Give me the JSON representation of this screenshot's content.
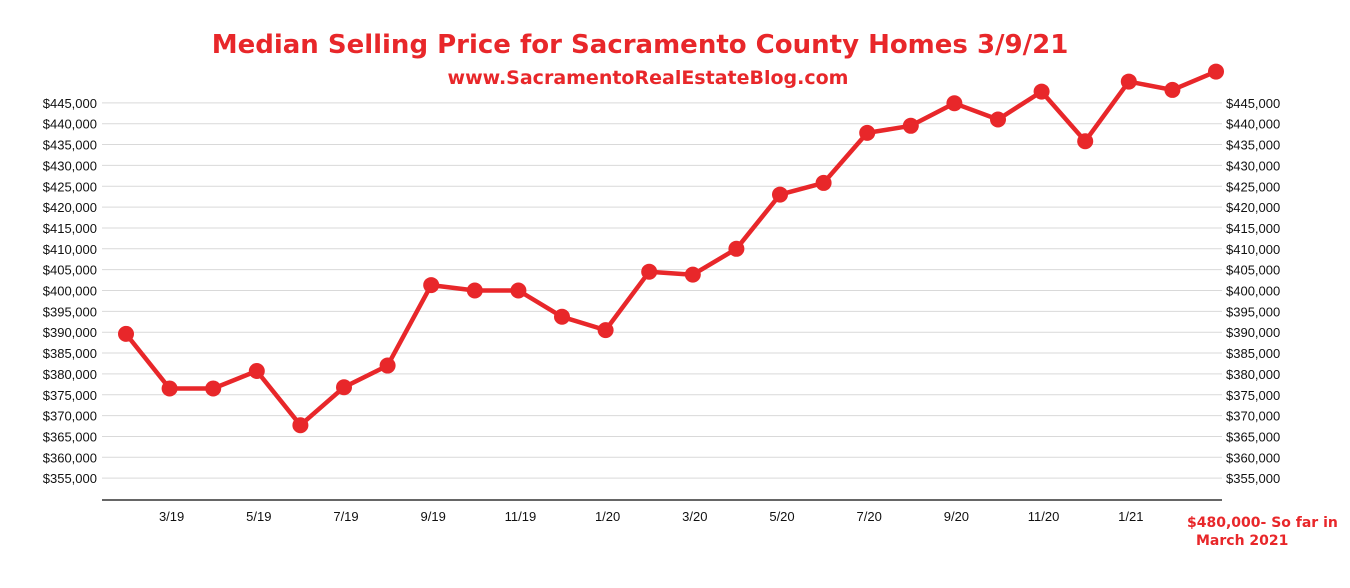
{
  "chart_data": {
    "type": "line",
    "title": "Median Selling Price for Sacramento County Homes 3/9/21",
    "subtitle": "www.SacramentoRealEstateBlog.com",
    "ylim": [
      350000,
      450000
    ],
    "y_ticks": [
      355000,
      360000,
      365000,
      370000,
      375000,
      380000,
      385000,
      390000,
      395000,
      400000,
      405000,
      410000,
      415000,
      420000,
      425000,
      430000,
      435000,
      440000,
      445000
    ],
    "y_tick_labels": [
      "$355,000",
      "$360,000",
      "$365,000",
      "$370,000",
      "$375,000",
      "$380,000",
      "$385,000",
      "$390,000",
      "$395,000",
      "$400,000",
      "$405,000",
      "$410,000",
      "$415,000",
      "$420,000",
      "$425,000",
      "$430,000",
      "$435,000",
      "$440,000",
      "$445,000"
    ],
    "x_tick_labels": [
      "3/19",
      "5/19",
      "7/19",
      "9/19",
      "11/19",
      "1/20",
      "3/20",
      "5/20",
      "7/20",
      "9/20",
      "11/20",
      "1/21"
    ],
    "x_tick_positions": [
      1,
      3,
      5,
      7,
      9,
      11,
      13,
      15,
      17,
      19,
      21,
      23
    ],
    "grid": true,
    "color": "#e8272a",
    "series": [
      {
        "values": [
          389600,
          376500,
          376500,
          380700,
          367700,
          376800,
          382000,
          401300,
          400000,
          400000,
          393700,
          390500,
          404500,
          403800,
          410000,
          423000,
          425800,
          437800,
          439500,
          444900,
          441000,
          447700,
          435800,
          450100,
          448100,
          452500
        ]
      }
    ],
    "annotation": [
      "$480,000- So far in",
      "March 2021"
    ]
  }
}
